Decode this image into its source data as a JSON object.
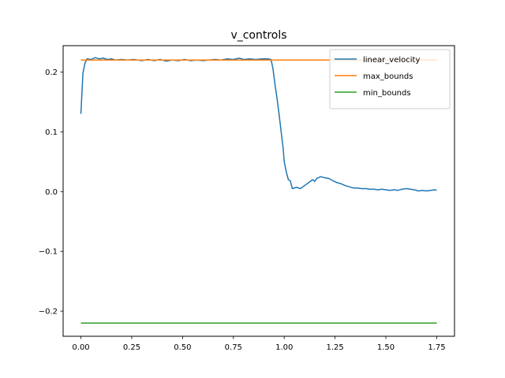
{
  "chart_data": {
    "type": "line",
    "title": "v_controls",
    "xlabel": "",
    "ylabel": "",
    "xlim": [
      -0.0875,
      1.8375
    ],
    "ylim": [
      -0.242,
      0.244
    ],
    "x_ticks": [
      0.0,
      0.25,
      0.5,
      0.75,
      1.0,
      1.25,
      1.5,
      1.75
    ],
    "x_tick_labels": [
      "0.00",
      "0.25",
      "0.50",
      "0.75",
      "1.00",
      "1.25",
      "1.50",
      "1.75"
    ],
    "y_ticks": [
      -0.2,
      -0.1,
      0.0,
      0.1,
      0.2
    ],
    "y_tick_labels": [
      "−0.2",
      "−0.1",
      "0.0",
      "0.1",
      "0.2"
    ],
    "grid": false,
    "legend_position": "top-right",
    "series": [
      {
        "name": "linear_velocity",
        "color": "#1f77b4",
        "points": [
          [
            0.0,
            0.13
          ],
          [
            0.01,
            0.198
          ],
          [
            0.02,
            0.215
          ],
          [
            0.03,
            0.222
          ],
          [
            0.05,
            0.221
          ],
          [
            0.07,
            0.224
          ],
          [
            0.09,
            0.222
          ],
          [
            0.11,
            0.223
          ],
          [
            0.13,
            0.221
          ],
          [
            0.15,
            0.222
          ],
          [
            0.17,
            0.22
          ],
          [
            0.2,
            0.221
          ],
          [
            0.23,
            0.22
          ],
          [
            0.26,
            0.221
          ],
          [
            0.3,
            0.219
          ],
          [
            0.33,
            0.221
          ],
          [
            0.36,
            0.219
          ],
          [
            0.39,
            0.221
          ],
          [
            0.42,
            0.218
          ],
          [
            0.45,
            0.22
          ],
          [
            0.48,
            0.219
          ],
          [
            0.51,
            0.221
          ],
          [
            0.54,
            0.219
          ],
          [
            0.57,
            0.22
          ],
          [
            0.6,
            0.219
          ],
          [
            0.63,
            0.22
          ],
          [
            0.66,
            0.221
          ],
          [
            0.69,
            0.22
          ],
          [
            0.72,
            0.222
          ],
          [
            0.75,
            0.221
          ],
          [
            0.78,
            0.223
          ],
          [
            0.8,
            0.221
          ],
          [
            0.83,
            0.222
          ],
          [
            0.86,
            0.221
          ],
          [
            0.89,
            0.222
          ],
          [
            0.92,
            0.222
          ],
          [
            0.935,
            0.221
          ],
          [
            0.945,
            0.205
          ],
          [
            0.955,
            0.178
          ],
          [
            0.965,
            0.155
          ],
          [
            0.975,
            0.128
          ],
          [
            0.985,
            0.1
          ],
          [
            0.995,
            0.072
          ],
          [
            1.0,
            0.05
          ],
          [
            1.01,
            0.033
          ],
          [
            1.02,
            0.02
          ],
          [
            1.03,
            0.018
          ],
          [
            1.04,
            0.005
          ],
          [
            1.06,
            0.007
          ],
          [
            1.08,
            0.005
          ],
          [
            1.1,
            0.01
          ],
          [
            1.12,
            0.015
          ],
          [
            1.14,
            0.02
          ],
          [
            1.15,
            0.017
          ],
          [
            1.16,
            0.022
          ],
          [
            1.18,
            0.025
          ],
          [
            1.2,
            0.023
          ],
          [
            1.22,
            0.022
          ],
          [
            1.24,
            0.018
          ],
          [
            1.26,
            0.015
          ],
          [
            1.28,
            0.013
          ],
          [
            1.3,
            0.01
          ],
          [
            1.32,
            0.008
          ],
          [
            1.34,
            0.006
          ],
          [
            1.36,
            0.006
          ],
          [
            1.38,
            0.005
          ],
          [
            1.4,
            0.005
          ],
          [
            1.42,
            0.004
          ],
          [
            1.44,
            0.004
          ],
          [
            1.46,
            0.003
          ],
          [
            1.48,
            0.004
          ],
          [
            1.5,
            0.003
          ],
          [
            1.52,
            0.002
          ],
          [
            1.54,
            0.003
          ],
          [
            1.56,
            0.002
          ],
          [
            1.58,
            0.004
          ],
          [
            1.6,
            0.005
          ],
          [
            1.62,
            0.004
          ],
          [
            1.64,
            0.003
          ],
          [
            1.66,
            0.001
          ],
          [
            1.68,
            0.002
          ],
          [
            1.7,
            0.001
          ],
          [
            1.72,
            0.002
          ],
          [
            1.74,
            0.003
          ],
          [
            1.75,
            0.002
          ]
        ]
      },
      {
        "name": "max_bounds",
        "color": "#ff7f0e",
        "points": [
          [
            0.0,
            0.22
          ],
          [
            1.75,
            0.22
          ]
        ]
      },
      {
        "name": "min_bounds",
        "color": "#2ca02c",
        "points": [
          [
            0.0,
            -0.22
          ],
          [
            1.75,
            -0.22
          ]
        ]
      }
    ]
  }
}
